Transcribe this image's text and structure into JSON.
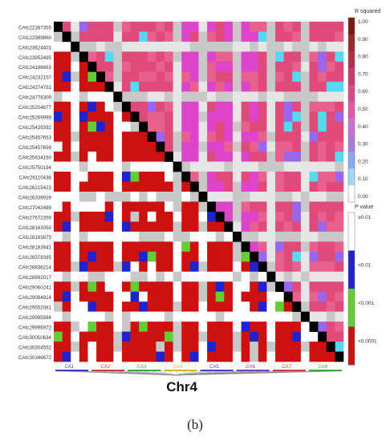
{
  "chart_data": {
    "type": "heatmap",
    "title": "",
    "xlabel": "",
    "ylabel": "",
    "chromosome_label": "Chr4",
    "markers": [
      "CAfc22267355",
      "CAfc22989860",
      "CAfc23624401",
      "CAfc23952495",
      "CAfc24186663",
      "CAfc24232157",
      "CAfc24374751",
      "CAfc24778309",
      "CAfc25204877",
      "CAfc25269999",
      "CAfc25429392",
      "CAfc25457653",
      "CAfc25457699",
      "CAfc25634160",
      "CAfc25750194",
      "CAfc26110438",
      "CAfc26215423",
      "CAfc26339929",
      "CAfc27042489",
      "CAfc27672359",
      "CAfc28183050",
      "CAfc28183875",
      "CAfc28183941",
      "CAfc28378395",
      "CAfc28836214",
      "CAfc28892017",
      "CAfc29060241",
      "CAfc29084914",
      "CAfc29552081",
      "CAfc29995584",
      "CAfc29996972",
      "CAfc30050634",
      "CAfc30304552",
      "CAfc30346672"
    ],
    "groups": [
      "CA1",
      "CA2",
      "CA3",
      "CA4",
      "CA5",
      "CA6",
      "CA7",
      "CA8"
    ],
    "group_colors": [
      "#3b3bbf",
      "#c8403c",
      "#3aa83a",
      "#e0b020",
      "#4040c8",
      "#7c3cb0",
      "#c84040",
      "#3aa83a"
    ],
    "legend_r2": {
      "title": "R squared",
      "ticks": [
        "1.00",
        "0.90",
        "0.80",
        "0.70",
        "0.60",
        "0.50",
        "0.40",
        "0.30",
        "0.20",
        "0.10",
        "0.00"
      ]
    },
    "legend_p": {
      "title": "P value",
      "ticks": [
        "≥0.01",
        "<0.01",
        "<0.001",
        "<0.0001"
      ],
      "colors": [
        "#ffffff",
        "#2222cc",
        "#66cc33",
        "#cc1111"
      ]
    },
    "r2_colors": [
      "#7a1a10",
      "#9a2a2a",
      "#b3304a",
      "#cc3a6a",
      "#d94a8a",
      "#e05aaa",
      "#d070d0",
      "#a87be0",
      "#8aa8f0",
      "#a0d8f8",
      "#ffffff"
    ],
    "upper_bands": [
      {
        "from": 0,
        "to": 34,
        "value": "pink"
      },
      {
        "from": 15,
        "to": 23,
        "value": "magenta"
      },
      {
        "from": 24,
        "to": 30,
        "value": "cyan"
      }
    ],
    "caption": "(b)"
  }
}
